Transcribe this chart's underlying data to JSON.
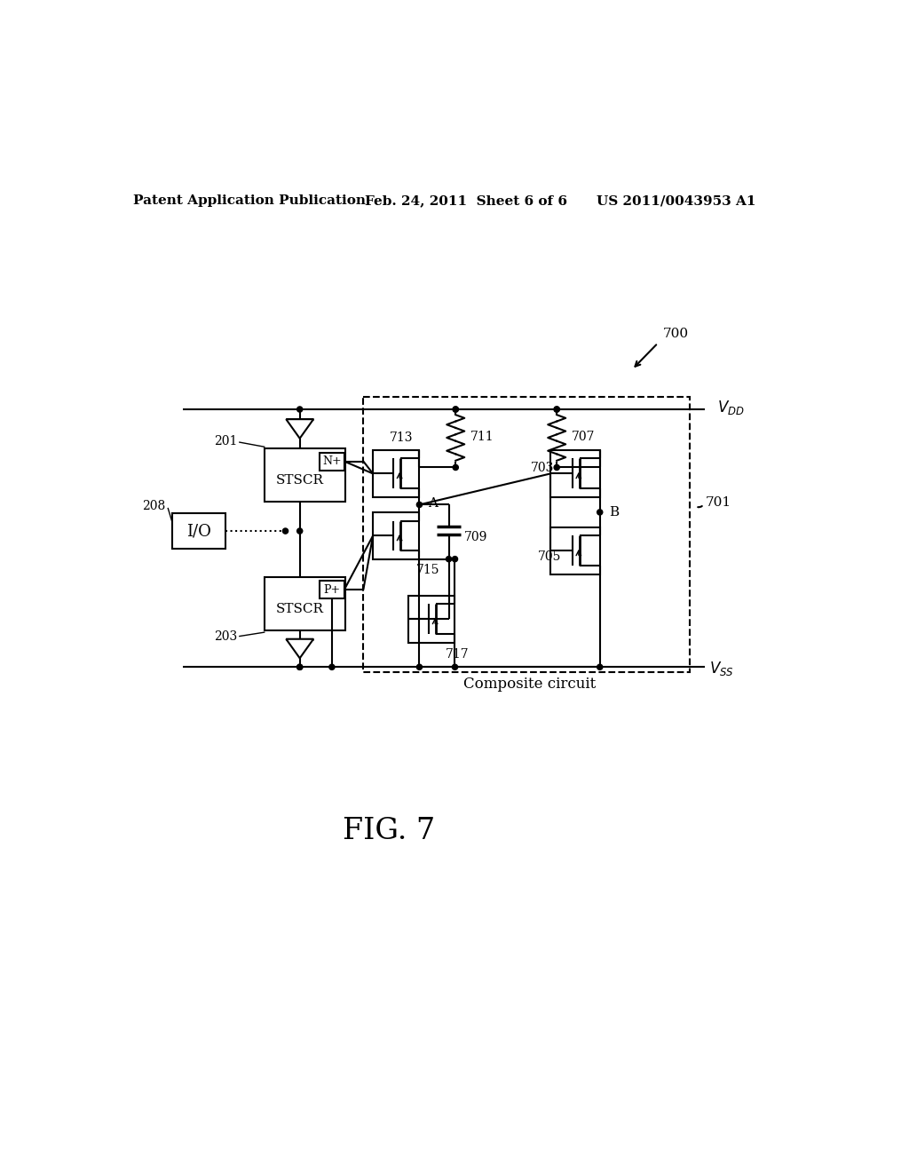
{
  "bg_color": "#ffffff",
  "header_left": "Patent Application Publication",
  "header_center": "Feb. 24, 2011  Sheet 6 of 6",
  "header_right": "US 2011/0043953 A1",
  "fig_label": "FIG. 7",
  "ref_700": "700",
  "ref_701": "701",
  "ref_201": "201",
  "ref_203": "203",
  "ref_208": "208",
  "ref_711": "711",
  "ref_707": "707",
  "ref_713": "713",
  "ref_703": "703",
  "ref_709": "709",
  "ref_715": "715",
  "ref_705": "705",
  "ref_717": "717",
  "label_A": "A",
  "label_B": "B",
  "vdd_label": "$V_{DD}$",
  "vss_label": "$V_{SS}$",
  "composite_label": "Composite circuit",
  "io_label": "I/O",
  "stscr_label": "STSCR",
  "nplus_label": "N+",
  "pplus_label": "P+"
}
